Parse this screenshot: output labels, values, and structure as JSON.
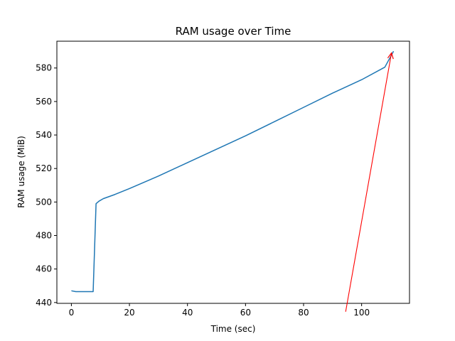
{
  "chart_data": {
    "type": "line",
    "title": "RAM usage over Time",
    "xlabel": "Time (sec)",
    "ylabel": "RAM usage (MiB)",
    "xlim": [
      -5,
      116.5
    ],
    "ylim": [
      439.5,
      596
    ],
    "xticks": [
      0,
      20,
      40,
      60,
      80,
      100
    ],
    "yticks": [
      440,
      460,
      480,
      500,
      520,
      540,
      560,
      580
    ],
    "grid": false,
    "series": [
      {
        "color": "#1f77b4",
        "x": [
          0,
          1.5,
          3,
          5,
          7.5,
          8.5,
          9.5,
          11,
          15,
          20,
          30,
          40,
          50,
          60,
          70,
          80,
          90,
          100,
          108,
          111
        ],
        "y": [
          447.0,
          446.5,
          446.5,
          446.5,
          446.5,
          499.0,
          500.5,
          502.0,
          504.5,
          508.0,
          515.5,
          523.5,
          531.5,
          539.5,
          548.0,
          556.5,
          565.0,
          573.0,
          580.5,
          590.0
        ]
      }
    ],
    "annotations": [
      {
        "type": "arrow",
        "color": "#ff0000",
        "from": [
          94.5,
          434.5
        ],
        "to": [
          110.3,
          589.0
        ]
      }
    ]
  }
}
